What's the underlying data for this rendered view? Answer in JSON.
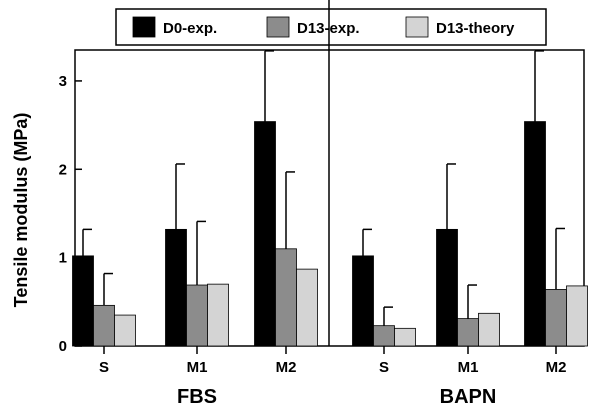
{
  "chart_data": {
    "type": "bar",
    "ylabel": "Tensile modulus (MPa)",
    "ylim": [
      0,
      3.35
    ],
    "yticks": [
      0,
      1,
      2,
      3
    ],
    "legend_position": "top",
    "groups": [
      {
        "label": "FBS",
        "categories": [
          "S",
          "M1",
          "M2"
        ]
      },
      {
        "label": "BAPN",
        "categories": [
          "S",
          "M1",
          "M2"
        ]
      }
    ],
    "series": [
      {
        "name": "D0-exp.",
        "color": "#000000",
        "values": [
          1.02,
          1.32,
          2.54,
          1.02,
          1.32,
          2.54
        ],
        "errors": [
          0.3,
          0.74,
          0.8,
          0.3,
          0.74,
          0.8
        ]
      },
      {
        "name": "D13-exp.",
        "color": "#8c8c8c",
        "values": [
          0.46,
          0.69,
          1.1,
          0.23,
          0.31,
          0.64
        ],
        "errors": [
          0.36,
          0.72,
          0.87,
          0.21,
          0.38,
          0.69
        ]
      },
      {
        "name": "D13-theory",
        "color": "#d4d4d4",
        "values": [
          0.35,
          0.7,
          0.87,
          0.2,
          0.37,
          0.68
        ],
        "errors": [
          null,
          null,
          null,
          null,
          null,
          null
        ]
      }
    ]
  }
}
